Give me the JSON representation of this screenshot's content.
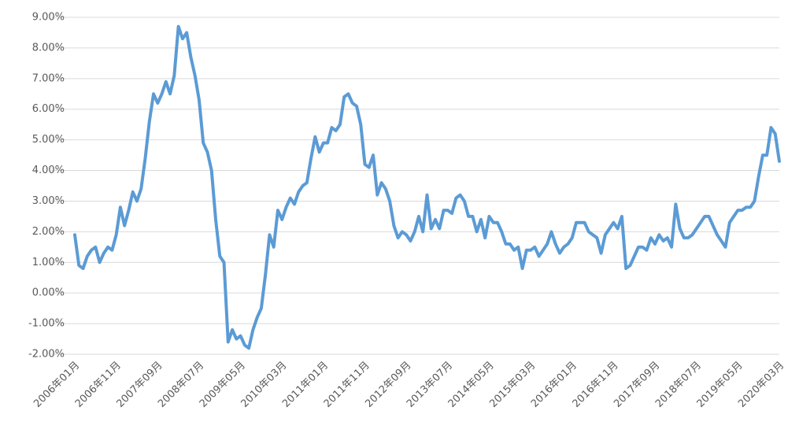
{
  "chart_data": {
    "type": "line",
    "categories": [
      "2006年01月",
      null,
      null,
      null,
      null,
      null,
      null,
      null,
      null,
      null,
      "2006年11月",
      null,
      null,
      null,
      null,
      null,
      null,
      null,
      null,
      null,
      "2007年09月",
      null,
      null,
      null,
      null,
      null,
      null,
      null,
      null,
      null,
      "2008年07月",
      null,
      null,
      null,
      null,
      null,
      null,
      null,
      null,
      null,
      "2009年05月",
      null,
      null,
      null,
      null,
      null,
      null,
      null,
      null,
      null,
      "2010年03月",
      null,
      null,
      null,
      null,
      null,
      null,
      null,
      null,
      null,
      "2011年01月",
      null,
      null,
      null,
      null,
      null,
      null,
      null,
      null,
      null,
      "2011年11月",
      null,
      null,
      null,
      null,
      null,
      null,
      null,
      null,
      null,
      "2012年09月",
      null,
      null,
      null,
      null,
      null,
      null,
      null,
      null,
      null,
      "2013年07月",
      null,
      null,
      null,
      null,
      null,
      null,
      null,
      null,
      null,
      "2014年05月",
      null,
      null,
      null,
      null,
      null,
      null,
      null,
      null,
      null,
      "2015年03月",
      null,
      null,
      null,
      null,
      null,
      null,
      null,
      null,
      null,
      "2016年01月",
      null,
      null,
      null,
      null,
      null,
      null,
      null,
      null,
      null,
      "2016年11月",
      null,
      null,
      null,
      null,
      null,
      null,
      null,
      null,
      null,
      "2017年09月",
      null,
      null,
      null,
      null,
      null,
      null,
      null,
      null,
      null,
      "2018年07月",
      null,
      null,
      null,
      null,
      null,
      null,
      null,
      null,
      null,
      "2019年05月",
      null,
      null,
      null,
      null,
      null,
      null,
      null,
      null,
      null,
      "2020年03月"
    ],
    "series": [
      {
        "color": "#5b9bd5",
        "values": [
          1.9,
          0.9,
          0.8,
          1.2,
          1.4,
          1.5,
          1.0,
          1.3,
          1.5,
          1.4,
          1.9,
          2.8,
          2.2,
          2.7,
          3.3,
          3.0,
          3.4,
          4.4,
          5.6,
          6.5,
          6.2,
          6.5,
          6.9,
          6.5,
          7.1,
          8.7,
          8.3,
          8.5,
          7.7,
          7.1,
          6.3,
          4.9,
          4.6,
          4.0,
          2.4,
          1.2,
          1.0,
          -1.6,
          -1.2,
          -1.5,
          -1.4,
          -1.7,
          -1.8,
          -1.2,
          -0.8,
          -0.5,
          0.6,
          1.9,
          1.5,
          2.7,
          2.4,
          2.8,
          3.1,
          2.9,
          3.3,
          3.5,
          3.6,
          4.4,
          5.1,
          4.6,
          4.9,
          4.9,
          5.4,
          5.3,
          5.5,
          6.4,
          6.5,
          6.2,
          6.1,
          5.5,
          4.2,
          4.1,
          4.5,
          3.2,
          3.6,
          3.4,
          3.0,
          2.2,
          1.8,
          2.0,
          1.9,
          1.7,
          2.0,
          2.5,
          2.0,
          3.2,
          2.1,
          2.4,
          2.1,
          2.7,
          2.7,
          2.6,
          3.1,
          3.2,
          3.0,
          2.5,
          2.5,
          2.0,
          2.4,
          1.8,
          2.5,
          2.3,
          2.3,
          2.0,
          1.6,
          1.6,
          1.4,
          1.5,
          0.8,
          1.4,
          1.4,
          1.5,
          1.2,
          1.4,
          1.6,
          2.0,
          1.6,
          1.3,
          1.5,
          1.6,
          1.8,
          2.3,
          2.3,
          2.3,
          2.0,
          1.9,
          1.8,
          1.3,
          1.9,
          2.1,
          2.3,
          2.1,
          2.5,
          0.8,
          0.9,
          1.2,
          1.5,
          1.5,
          1.4,
          1.8,
          1.6,
          1.9,
          1.7,
          1.8,
          1.5,
          2.9,
          2.1,
          1.8,
          1.8,
          1.9,
          2.1,
          2.3,
          2.5,
          2.5,
          2.2,
          1.9,
          1.7,
          1.5,
          2.3,
          2.5,
          2.7,
          2.7,
          2.8,
          2.8,
          3.0,
          3.8,
          4.5,
          4.5,
          5.4,
          5.2,
          4.3
        ]
      }
    ],
    "ylim": [
      -2,
      9
    ],
    "yticks": [
      {
        "value": -2,
        "label": "-2.00%"
      },
      {
        "value": -1,
        "label": "-1.00%"
      },
      {
        "value": 0,
        "label": "0.00%"
      },
      {
        "value": 1,
        "label": "1.00%"
      },
      {
        "value": 2,
        "label": "2.00%"
      },
      {
        "value": 3,
        "label": "3.00%"
      },
      {
        "value": 4,
        "label": "4.00%"
      },
      {
        "value": 5,
        "label": "5.00%"
      },
      {
        "value": 6,
        "label": "6.00%"
      },
      {
        "value": 7,
        "label": "7.00%"
      },
      {
        "value": 8,
        "label": "8.00%"
      },
      {
        "value": 9,
        "label": "9.00%"
      }
    ],
    "grid": true
  }
}
